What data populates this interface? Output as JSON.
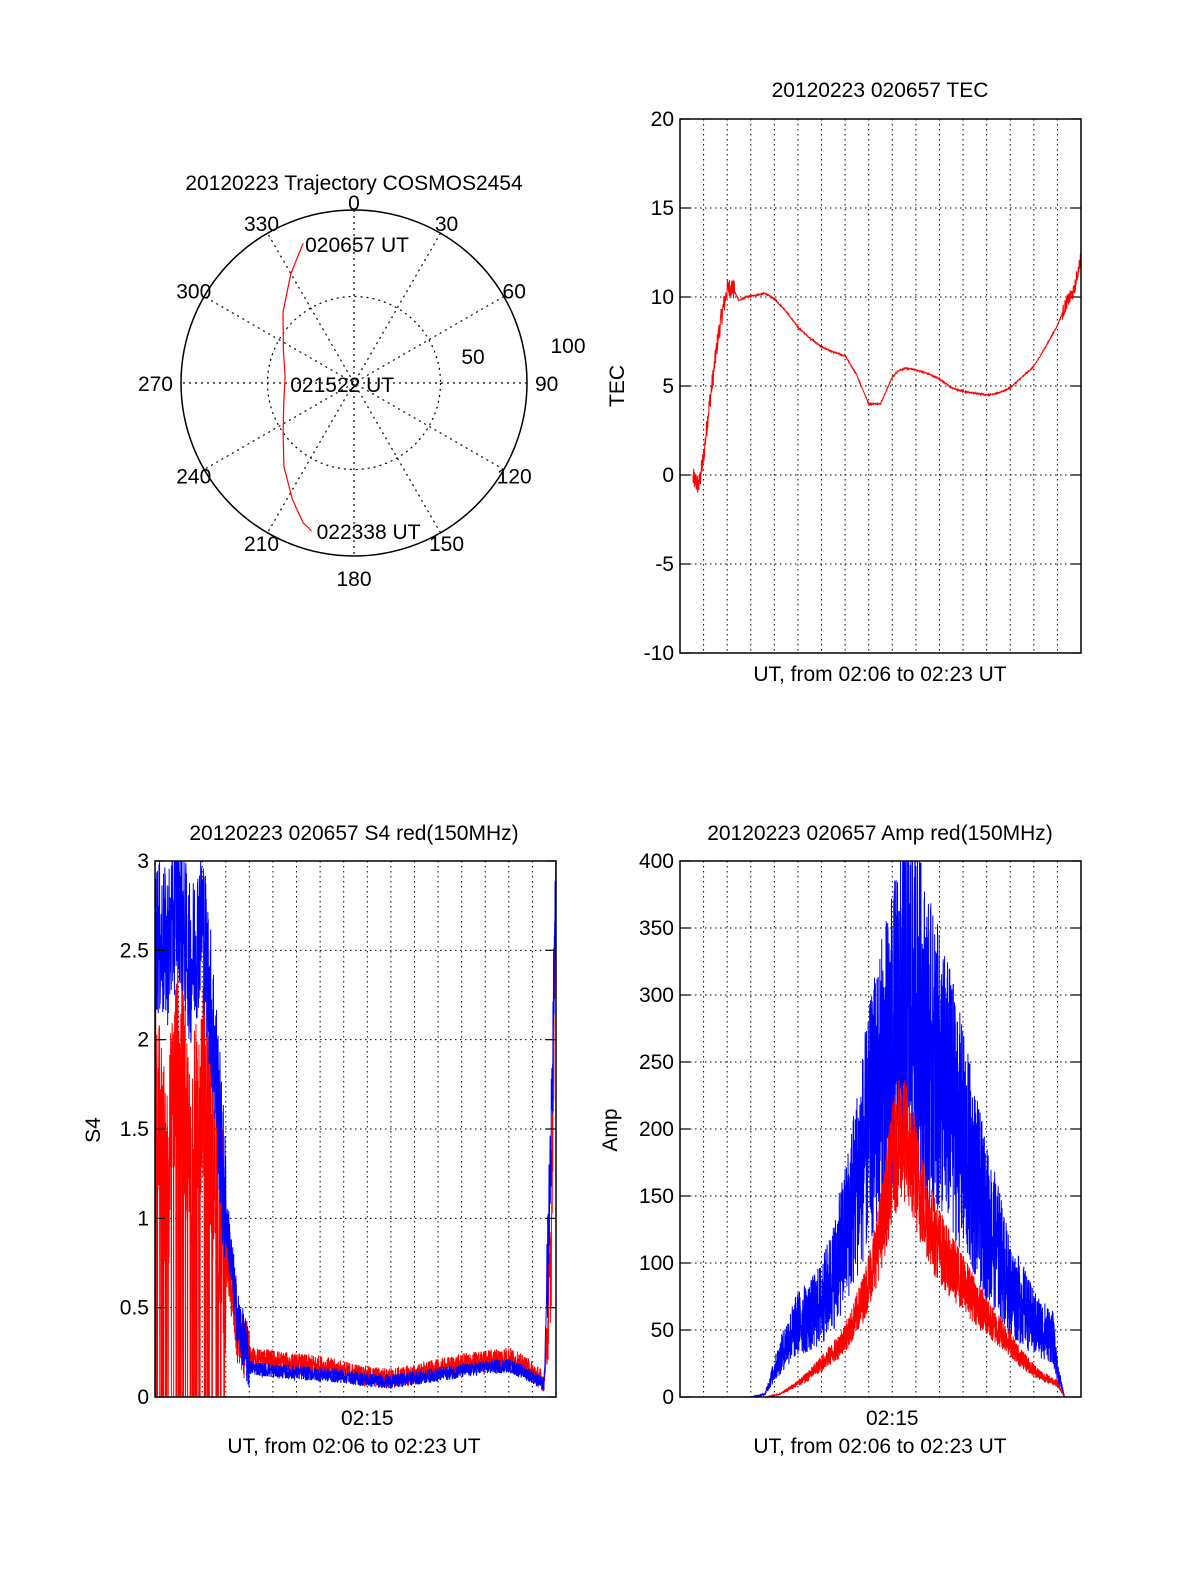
{
  "colors": {
    "red": "#ff0000",
    "blue": "#0000ff",
    "axis": "#000000",
    "grid": "#000000"
  },
  "chart_data": [
    {
      "type": "polar",
      "title": "20120223 Trajectory COSMOS2454",
      "azimuth_labels": [
        "0",
        "30",
        "60",
        "90",
        "120",
        "150",
        "180",
        "210",
        "240",
        "270",
        "300",
        "330"
      ],
      "radius_labels": [
        "50",
        "100"
      ],
      "rlim": [
        0,
        100
      ],
      "grid": true,
      "time_labels": [
        {
          "text": "020657 UT",
          "az": 340,
          "r": 86
        },
        {
          "text": "021522 UT",
          "az": 270,
          "r": 38
        },
        {
          "text": "022338 UT",
          "az": 195,
          "r": 88
        }
      ],
      "trajectory": {
        "color": "red",
        "points": [
          [
            340,
            86
          ],
          [
            330,
            73
          ],
          [
            315,
            58
          ],
          [
            295,
            45
          ],
          [
            275,
            40
          ],
          [
            255,
            42
          ],
          [
            235,
            50
          ],
          [
            220,
            63
          ],
          [
            208,
            76
          ],
          [
            200,
            86
          ],
          [
            196,
            89
          ]
        ]
      }
    },
    {
      "type": "line",
      "title": "20120223 020657 TEC",
      "xlabel": "UT, from 02:06 to 02:23 UT",
      "ylabel": "TEC",
      "xlim": [
        0,
        17
      ],
      "ylim": [
        -10,
        20
      ],
      "yticks": [
        "-10",
        "-5",
        "0",
        "5",
        "10",
        "15",
        "20"
      ],
      "grid": true,
      "series": [
        {
          "color": "red",
          "x": [
            0.55,
            0.8,
            1.0,
            1.2,
            1.4,
            1.6,
            1.8,
            2.0,
            2.2,
            2.5,
            2.8,
            3.2,
            3.6,
            4.0,
            4.5,
            5.0,
            5.5,
            6.0,
            6.5,
            7.0,
            7.5,
            8.0,
            8.5,
            9.0,
            9.3,
            9.6,
            10.0,
            10.5,
            11.0,
            11.5,
            12.0,
            12.5,
            13.0,
            13.5,
            14.0,
            14.5,
            15.0,
            15.5,
            16.0,
            16.4,
            16.7,
            17.0
          ],
          "y": [
            -0.2,
            -0.6,
            1.0,
            3.5,
            5.5,
            7.6,
            9.2,
            10.4,
            10.6,
            9.8,
            10.0,
            10.1,
            10.2,
            9.9,
            9.2,
            8.3,
            7.7,
            7.2,
            6.9,
            6.7,
            5.6,
            4.0,
            4.0,
            5.5,
            5.9,
            6.0,
            5.9,
            5.7,
            5.4,
            4.9,
            4.7,
            4.6,
            4.5,
            4.6,
            4.9,
            5.5,
            6.1,
            7.2,
            8.4,
            9.7,
            10.3,
            12.3
          ]
        }
      ]
    },
    {
      "type": "line",
      "title": "20120223 020657 S4 red(150MHz)",
      "xlabel": "UT, from 02:06 to 02:23 UT",
      "ylabel": "S4",
      "xlim": [
        0,
        17
      ],
      "ylim": [
        0,
        3
      ],
      "xticks": [
        {
          "value": 9,
          "label": "02:15"
        }
      ],
      "yticks": [
        "0",
        "0.5",
        "1",
        "1.5",
        "2",
        "2.5",
        "3"
      ],
      "grid": true,
      "series": [
        {
          "color": "red",
          "x": [
            0,
            0.5,
            1.0,
            1.5,
            2.0,
            2.5,
            3.0,
            3.5,
            4.0,
            5.0,
            6.0,
            7.0,
            8.0,
            9.0,
            10.0,
            11.0,
            12.0,
            13.0,
            14.0,
            15.0,
            16.0,
            16.5,
            16.8,
            17.0
          ],
          "y": [
            1.7,
            1.2,
            2.0,
            1.3,
            1.8,
            1.3,
            0.8,
            0.3,
            0.2,
            0.18,
            0.16,
            0.15,
            0.12,
            0.09,
            0.08,
            0.1,
            0.13,
            0.16,
            0.18,
            0.2,
            0.12,
            0.06,
            0.8,
            3.0
          ]
        },
        {
          "color": "blue",
          "x": [
            0,
            0.5,
            1.0,
            1.5,
            2.0,
            2.5,
            3.0,
            3.5,
            4.0,
            5.0,
            6.0,
            7.0,
            8.0,
            9.0,
            10.0,
            11.0,
            12.0,
            13.0,
            14.0,
            15.0,
            16.0,
            16.5,
            16.8,
            17.0
          ],
          "y": [
            2.6,
            2.5,
            2.8,
            2.4,
            2.7,
            2.0,
            1.0,
            0.4,
            0.15,
            0.13,
            0.12,
            0.11,
            0.1,
            0.08,
            0.07,
            0.09,
            0.11,
            0.13,
            0.15,
            0.16,
            0.1,
            0.05,
            1.5,
            3.0
          ]
        }
      ]
    },
    {
      "type": "line",
      "title": "20120223 020657 Amp red(150MHz)",
      "xlabel": "UT, from 02:06 to 02:23 UT",
      "ylabel": "Amp",
      "xlim": [
        0,
        17
      ],
      "ylim": [
        0,
        400
      ],
      "xticks": [
        {
          "value": 9,
          "label": "02:15"
        }
      ],
      "yticks": [
        "0",
        "50",
        "100",
        "150",
        "200",
        "250",
        "300",
        "350",
        "400"
      ],
      "grid": true,
      "series": [
        {
          "color": "red",
          "x": [
            0.5,
            1.0,
            2.0,
            3.0,
            3.6,
            4.2,
            4.8,
            5.4,
            6.0,
            6.6,
            7.2,
            7.8,
            8.2,
            8.6,
            9.0,
            9.4,
            9.8,
            10.2,
            10.8,
            11.4,
            12.0,
            12.6,
            13.2,
            13.8,
            14.4,
            15.0,
            15.4,
            15.8,
            16.0,
            16.3,
            17.0
          ],
          "y": [
            0,
            0,
            0,
            0,
            0,
            2,
            8,
            15,
            25,
            35,
            50,
            75,
            100,
            130,
            175,
            195,
            180,
            150,
            120,
            100,
            85,
            70,
            55,
            45,
            30,
            20,
            15,
            12,
            10,
            0,
            0
          ]
        },
        {
          "color": "blue",
          "x": [
            0.5,
            1.0,
            2.0,
            3.0,
            3.6,
            4.0,
            4.5,
            5.0,
            5.5,
            6.0,
            6.5,
            7.0,
            7.5,
            8.0,
            8.5,
            9.0,
            9.5,
            10.0,
            10.5,
            11.0,
            11.5,
            12.0,
            12.5,
            13.0,
            13.5,
            14.0,
            14.5,
            15.0,
            15.4,
            15.8,
            16.0,
            16.3,
            17.0
          ],
          "y": [
            0,
            0,
            0,
            0,
            2,
            20,
            40,
            55,
            60,
            70,
            90,
            120,
            160,
            200,
            235,
            260,
            300,
            290,
            260,
            240,
            220,
            190,
            160,
            130,
            110,
            80,
            70,
            55,
            50,
            45,
            20,
            0,
            0
          ]
        }
      ]
    }
  ]
}
